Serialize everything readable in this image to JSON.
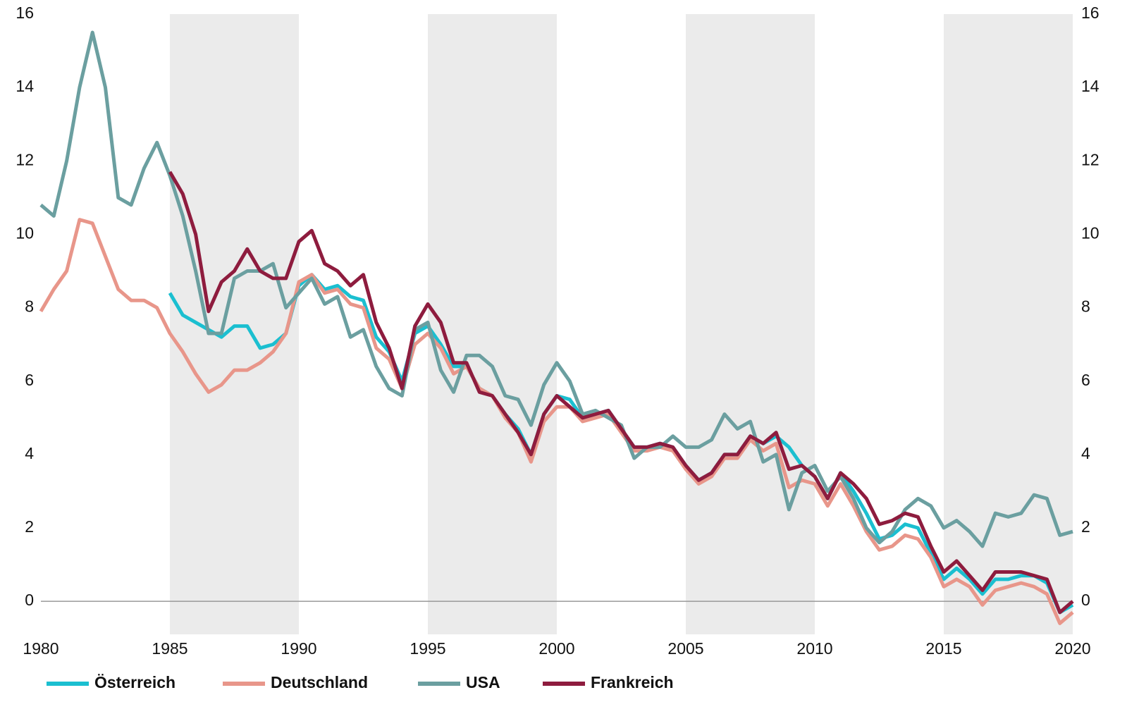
{
  "chart_data": {
    "type": "line",
    "x": [
      1980,
      1980.5,
      1981,
      1981.5,
      1982,
      1982.5,
      1983,
      1983.5,
      1984,
      1984.5,
      1985,
      1985.5,
      1986,
      1986.5,
      1987,
      1987.5,
      1988,
      1988.5,
      1989,
      1989.5,
      1990,
      1990.5,
      1991,
      1991.5,
      1992,
      1992.5,
      1993,
      1993.5,
      1994,
      1994.5,
      1995,
      1995.5,
      1996,
      1996.5,
      1997,
      1997.5,
      1998,
      1998.5,
      1999,
      1999.5,
      2000,
      2000.5,
      2001,
      2001.5,
      2002,
      2002.5,
      2003,
      2003.5,
      2004,
      2004.5,
      2005,
      2005.5,
      2006,
      2006.5,
      2007,
      2007.5,
      2008,
      2008.5,
      2009,
      2009.5,
      2010,
      2010.5,
      2011,
      2011.5,
      2012,
      2012.5,
      2013,
      2013.5,
      2014,
      2014.5,
      2015,
      2015.5,
      2016,
      2016.5,
      2017,
      2017.5,
      2018,
      2018.5,
      2019,
      2019.5,
      2020
    ],
    "series": [
      {
        "name": "Österreich",
        "color": "#1bbfd0",
        "values": [
          null,
          null,
          null,
          null,
          null,
          null,
          null,
          null,
          null,
          null,
          8.4,
          7.8,
          7.6,
          7.4,
          7.2,
          7.5,
          7.5,
          6.9,
          7.0,
          7.3,
          8.6,
          8.9,
          8.5,
          8.6,
          8.3,
          8.2,
          7.2,
          6.8,
          6.0,
          7.3,
          7.5,
          7.0,
          6.4,
          6.4,
          5.8,
          5.6,
          5.1,
          4.7,
          4.0,
          5.1,
          5.6,
          5.5,
          5.0,
          5.1,
          5.2,
          4.7,
          4.2,
          4.2,
          4.3,
          4.2,
          3.7,
          3.3,
          3.5,
          4.0,
          4.0,
          4.5,
          4.3,
          4.5,
          4.2,
          3.7,
          3.4,
          2.8,
          3.5,
          3.0,
          2.4,
          1.7,
          1.8,
          2.1,
          2.0,
          1.3,
          0.6,
          0.9,
          0.6,
          0.2,
          0.6,
          0.6,
          0.7,
          0.7,
          0.5,
          -0.3,
          -0.1
        ]
      },
      {
        "name": "Deutschland",
        "color": "#e8968a",
        "values": [
          7.9,
          8.5,
          9.0,
          10.4,
          10.3,
          9.4,
          8.5,
          8.2,
          8.2,
          8.0,
          7.3,
          6.8,
          6.2,
          5.7,
          5.9,
          6.3,
          6.3,
          6.5,
          6.8,
          7.3,
          8.7,
          8.9,
          8.4,
          8.5,
          8.1,
          8.0,
          6.9,
          6.6,
          5.8,
          7.0,
          7.3,
          6.9,
          6.2,
          6.4,
          5.8,
          5.6,
          5.0,
          4.6,
          3.8,
          4.9,
          5.3,
          5.3,
          4.9,
          5.0,
          5.1,
          4.6,
          4.1,
          4.1,
          4.2,
          4.1,
          3.6,
          3.2,
          3.4,
          3.9,
          3.9,
          4.4,
          4.1,
          4.3,
          3.1,
          3.3,
          3.2,
          2.6,
          3.2,
          2.6,
          1.9,
          1.4,
          1.5,
          1.8,
          1.7,
          1.2,
          0.4,
          0.6,
          0.4,
          -0.1,
          0.3,
          0.4,
          0.5,
          0.4,
          0.2,
          -0.6,
          -0.3
        ]
      },
      {
        "name": "USA",
        "color": "#6b9fa0",
        "values": [
          10.8,
          10.5,
          12.0,
          14.0,
          15.5,
          14.0,
          11.0,
          10.8,
          11.8,
          12.5,
          11.6,
          10.5,
          9.0,
          7.3,
          7.3,
          8.8,
          9.0,
          9.0,
          9.2,
          8.0,
          8.4,
          8.8,
          8.1,
          8.3,
          7.2,
          7.4,
          6.4,
          5.8,
          5.6,
          7.4,
          7.6,
          6.3,
          5.7,
          6.7,
          6.7,
          6.4,
          5.6,
          5.5,
          4.8,
          5.9,
          6.5,
          6.0,
          5.1,
          5.2,
          5.0,
          4.8,
          3.9,
          4.2,
          4.2,
          4.5,
          4.2,
          4.2,
          4.4,
          5.1,
          4.7,
          4.9,
          3.8,
          4.0,
          2.5,
          3.5,
          3.7,
          3.0,
          3.4,
          2.8,
          2.0,
          1.6,
          1.9,
          2.5,
          2.8,
          2.6,
          2.0,
          2.2,
          1.9,
          1.5,
          2.4,
          2.3,
          2.4,
          2.9,
          2.8,
          1.8,
          1.9
        ]
      },
      {
        "name": "Frankreich",
        "color": "#8e1c3e",
        "values": [
          null,
          null,
          null,
          null,
          null,
          null,
          null,
          null,
          null,
          null,
          11.7,
          11.1,
          10.0,
          7.9,
          8.7,
          9.0,
          9.6,
          9.0,
          8.8,
          8.8,
          9.8,
          10.1,
          9.2,
          9.0,
          8.6,
          8.9,
          7.6,
          6.9,
          5.8,
          7.5,
          8.1,
          7.6,
          6.5,
          6.5,
          5.7,
          5.6,
          5.1,
          4.6,
          4.0,
          5.1,
          5.6,
          5.3,
          5.0,
          5.1,
          5.2,
          4.7,
          4.2,
          4.2,
          4.3,
          4.2,
          3.7,
          3.3,
          3.5,
          4.0,
          4.0,
          4.5,
          4.3,
          4.6,
          3.6,
          3.7,
          3.4,
          2.8,
          3.5,
          3.2,
          2.8,
          2.1,
          2.2,
          2.4,
          2.3,
          1.5,
          0.8,
          1.1,
          0.7,
          0.3,
          0.8,
          0.8,
          0.8,
          0.7,
          0.6,
          -0.3,
          0.0
        ]
      }
    ],
    "xlim": [
      1980,
      2020
    ],
    "xticks": [
      1980,
      1985,
      1990,
      1995,
      2000,
      2005,
      2010,
      2015,
      2020
    ],
    "ylim": [
      -0.9,
      16
    ],
    "yticks": [
      0,
      2,
      4,
      6,
      8,
      10,
      12,
      14,
      16
    ],
    "shaded_ranges": [
      [
        1985,
        1990
      ],
      [
        1995,
        2000
      ],
      [
        2005,
        2010
      ],
      [
        2015,
        2020
      ]
    ],
    "shade_color": "#ebebeb",
    "zero_line": true,
    "legend": "bottom"
  }
}
